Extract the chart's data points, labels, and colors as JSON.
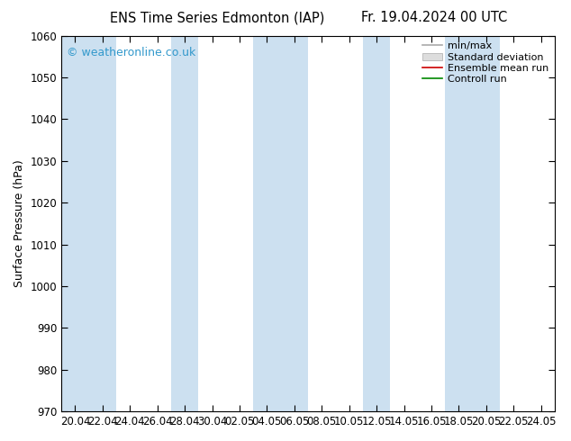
{
  "title_left": "ENS Time Series Edmonton (IAP)",
  "title_right": "Fr. 19.04.2024 00 UTC",
  "ylabel": "Surface Pressure (hPa)",
  "ylim": [
    970,
    1060
  ],
  "yticks": [
    970,
    980,
    990,
    1000,
    1010,
    1020,
    1030,
    1040,
    1050,
    1060
  ],
  "x_labels": [
    "20.04",
    "22.04",
    "24.04",
    "26.04",
    "28.04",
    "30.04",
    "02.05",
    "04.05",
    "06.05",
    "08.05",
    "10.05",
    "12.05",
    "14.05",
    "16.05",
    "18.05",
    "20.05",
    "22.05",
    "24.05"
  ],
  "watermark": "© weatheronline.co.uk",
  "watermark_color": "#3399cc",
  "bg_color": "#ffffff",
  "plot_bg_color": "#ffffff",
  "band_color": "#cce0f0",
  "band_indices": [
    0,
    1,
    4,
    7,
    8,
    11,
    14,
    15
  ],
  "legend_items": [
    "min/max",
    "Standard deviation",
    "Ensemble mean run",
    "Controll run"
  ],
  "legend_line_colors": [
    "#aaaaaa",
    "#cccccc",
    "#cc0000",
    "#008800"
  ],
  "title_fontsize": 10.5,
  "ylabel_fontsize": 9,
  "tick_fontsize": 8.5,
  "legend_fontsize": 8,
  "watermark_fontsize": 9
}
